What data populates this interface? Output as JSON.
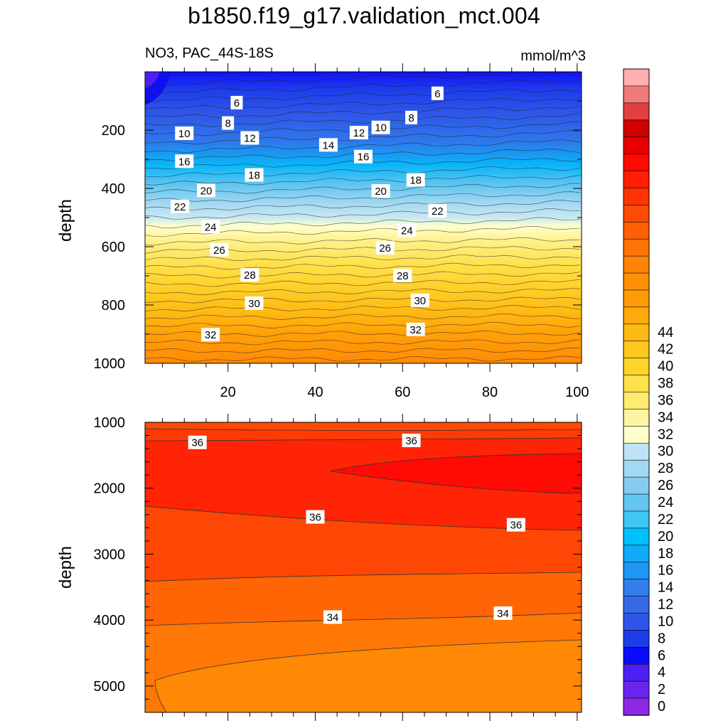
{
  "title": "b1850.f19_g17.validation_mct.004",
  "subtitle_left": "NO3, PAC_44S-18S",
  "subtitle_right": "mmol/m^3",
  "chart_data": [
    {
      "type": "contour",
      "panel": "upper",
      "ylabel": "depth",
      "xlabel": "",
      "xlim": [
        1,
        101
      ],
      "ylim": [
        1000,
        0
      ],
      "xticks": [
        20,
        40,
        60,
        80,
        100
      ],
      "yticks": [
        200,
        400,
        600,
        800,
        1000
      ],
      "colorbar_levels": [
        0,
        2,
        4,
        6,
        8,
        10,
        12,
        14,
        16,
        18,
        20,
        22,
        24,
        26,
        28,
        30,
        32,
        34,
        36,
        38,
        40,
        42,
        44
      ],
      "contour_labels": [
        {
          "value": 6,
          "x": 22,
          "y": 107
        },
        {
          "value": 6,
          "x": 68,
          "y": 75
        },
        {
          "value": 8,
          "x": 20,
          "y": 177
        },
        {
          "value": 8,
          "x": 62,
          "y": 158
        },
        {
          "value": 10,
          "x": 10,
          "y": 212
        },
        {
          "value": 10,
          "x": 55,
          "y": 192
        },
        {
          "value": 12,
          "x": 25,
          "y": 228
        },
        {
          "value": 12,
          "x": 50,
          "y": 210
        },
        {
          "value": 14,
          "x": 43,
          "y": 252
        },
        {
          "value": 16,
          "x": 10,
          "y": 308
        },
        {
          "value": 16,
          "x": 51,
          "y": 292
        },
        {
          "value": 18,
          "x": 26,
          "y": 355
        },
        {
          "value": 18,
          "x": 63,
          "y": 372
        },
        {
          "value": 20,
          "x": 15,
          "y": 408
        },
        {
          "value": 20,
          "x": 55,
          "y": 410
        },
        {
          "value": 22,
          "x": 9,
          "y": 463
        },
        {
          "value": 22,
          "x": 68,
          "y": 478
        },
        {
          "value": 24,
          "x": 16,
          "y": 533
        },
        {
          "value": 24,
          "x": 61,
          "y": 545
        },
        {
          "value": 26,
          "x": 18,
          "y": 612
        },
        {
          "value": 26,
          "x": 56,
          "y": 605
        },
        {
          "value": 28,
          "x": 25,
          "y": 698
        },
        {
          "value": 28,
          "x": 60,
          "y": 700
        },
        {
          "value": 30,
          "x": 26,
          "y": 795
        },
        {
          "value": 30,
          "x": 64,
          "y": 785
        },
        {
          "value": 32,
          "x": 16,
          "y": 903
        },
        {
          "value": 32,
          "x": 63,
          "y": 885
        }
      ]
    },
    {
      "type": "contour",
      "panel": "lower",
      "ylabel": "depth",
      "xlabel": "",
      "xlim": [
        1,
        101
      ],
      "ylim": [
        5400,
        1000
      ],
      "yticks": [
        1000,
        2000,
        3000,
        4000,
        5000
      ],
      "contour_labels": [
        {
          "value": 36,
          "x": 13,
          "y": 1310
        },
        {
          "value": 36,
          "x": 62,
          "y": 1280
        },
        {
          "value": 36,
          "x": 40,
          "y": 2440
        },
        {
          "value": 36,
          "x": 86,
          "y": 2560
        },
        {
          "value": 34,
          "x": 44,
          "y": 3960
        },
        {
          "value": 34,
          "x": 83,
          "y": 3900
        }
      ]
    }
  ],
  "colorbar": {
    "labels": [
      "0",
      "2",
      "4",
      "6",
      "8",
      "10",
      "12",
      "14",
      "16",
      "18",
      "20",
      "22",
      "24",
      "26",
      "28",
      "30",
      "32",
      "34",
      "36",
      "38",
      "40",
      "42",
      "44"
    ],
    "colors": [
      "#8C28E6",
      "#6A24F0",
      "#4D1FF5",
      "#0A0AFF",
      "#1E3CEB",
      "#2E55E8",
      "#3569E8",
      "#317EED",
      "#1F96F5",
      "#0FAAF8",
      "#00C1FF",
      "#3FC6F2",
      "#62C6F1",
      "#84CDF0",
      "#A2D8F2",
      "#BEE3F4",
      "#FFFFCC",
      "#FFF5A0",
      "#FFEB6E",
      "#FFE14B",
      "#FFD52C",
      "#FFC81E",
      "#FFBB14",
      "#FFAA0A",
      "#FF9C05",
      "#FF8F05",
      "#FF8305",
      "#FF7405",
      "#FF6005",
      "#FF4A05",
      "#FF3405",
      "#FF1E05",
      "#FF0A00",
      "#E60000",
      "#D00000",
      "#E04040",
      "#EE7A7A",
      "#FFB0B0"
    ]
  }
}
